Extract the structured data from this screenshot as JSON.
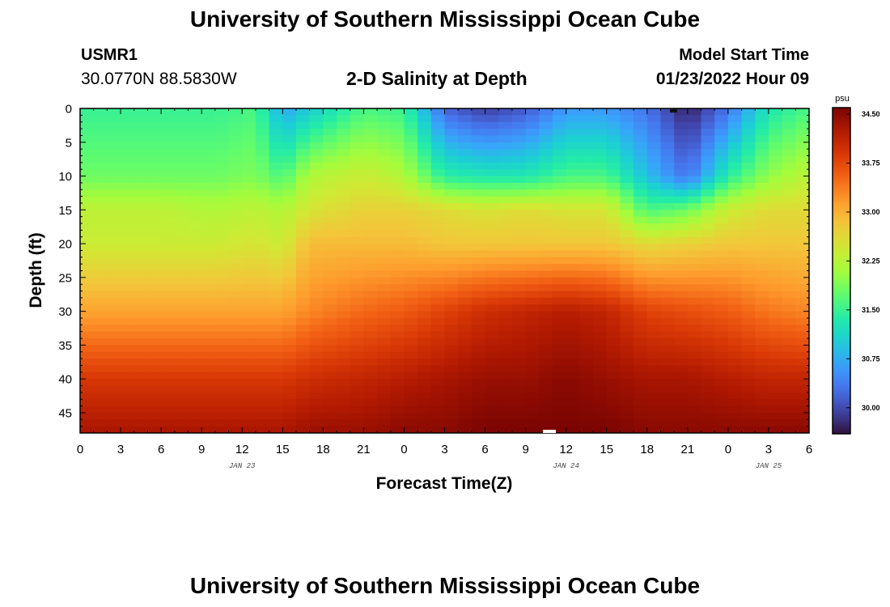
{
  "header": {
    "title": "University of Southern Mississippi Ocean Cube",
    "station": "USMR1",
    "coordinates": "30.0770N  88.5830W",
    "subtitle": "2-D Salinity at Depth",
    "model_start_label": "Model Start Time",
    "model_start_value": "01/23/2022 Hour 09"
  },
  "footer": {
    "title": "University of Southern Mississippi Ocean Cube"
  },
  "colors": {
    "background": "#ffffff",
    "colormap": [
      "#30123b",
      "#4145ab",
      "#4675ed",
      "#39a2fc",
      "#1bcfd4",
      "#24eca6",
      "#61fc6c",
      "#a4fc3b",
      "#d1e834",
      "#f3c63a",
      "#fe9b2d",
      "#f36315",
      "#d93806",
      "#b11901",
      "#7a0403"
    ]
  },
  "chart_data": {
    "type": "heatmap",
    "xlabel": "Forecast Time(Z)",
    "ylabel": "Depth (ft)",
    "x_tick_labels": [
      "0",
      "3",
      "6",
      "9",
      "12",
      "15",
      "18",
      "21",
      "0",
      "3",
      "6",
      "9",
      "12",
      "15",
      "18",
      "21",
      "0",
      "3",
      "6"
    ],
    "x_tick_hours": [
      0,
      3,
      6,
      9,
      12,
      15,
      18,
      21,
      24,
      27,
      30,
      33,
      36,
      39,
      42,
      45,
      48,
      51,
      54
    ],
    "date_labels": [
      {
        "label": "JAN 23",
        "hour": 12
      },
      {
        "label": "JAN 24",
        "hour": 36
      },
      {
        "label": "JAN 25",
        "hour": 51
      }
    ],
    "y_tick_labels": [
      "0",
      "5",
      "10",
      "15",
      "20",
      "25",
      "30",
      "35",
      "40",
      "45"
    ],
    "y_ticks": [
      0,
      5,
      10,
      15,
      20,
      25,
      30,
      35,
      40,
      45
    ],
    "ylim": [
      0,
      48
    ],
    "xlim": [
      0,
      54
    ],
    "y_reversed": true,
    "colorbar": {
      "unit": "psu",
      "labels": [
        "34.50",
        "33.75",
        "33.00",
        "32.25",
        "31.50",
        "30.75",
        "30.00"
      ],
      "ticks": [
        34.5,
        33.75,
        33.0,
        32.25,
        31.5,
        30.75,
        30.0
      ],
      "range": [
        29.6,
        34.6
      ]
    },
    "time_hours": [
      0,
      6,
      10,
      13,
      15,
      17,
      21,
      24,
      27,
      30,
      33,
      36,
      39,
      42,
      45,
      48,
      51,
      54
    ],
    "depth_ft": [
      0,
      10,
      15,
      20,
      30,
      40,
      48
    ],
    "salinity_psu": [
      [
        31.5,
        31.8,
        32.3,
        32.4,
        33.1,
        33.9,
        34.3
      ],
      [
        31.5,
        31.8,
        32.3,
        32.4,
        33.1,
        33.9,
        34.3
      ],
      [
        31.5,
        31.8,
        32.2,
        32.4,
        33.1,
        33.9,
        34.3
      ],
      [
        31.6,
        31.9,
        32.3,
        32.5,
        33.1,
        33.9,
        34.3
      ],
      [
        30.7,
        31.6,
        32.2,
        32.4,
        33.1,
        33.9,
        34.3
      ],
      [
        31.0,
        32.2,
        32.5,
        32.9,
        33.3,
        34.0,
        34.4
      ],
      [
        31.6,
        32.4,
        32.7,
        32.9,
        33.5,
        34.1,
        34.4
      ],
      [
        31.5,
        32.2,
        32.7,
        32.9,
        33.6,
        34.2,
        34.5
      ],
      [
        30.2,
        31.4,
        32.6,
        32.8,
        33.8,
        34.3,
        34.5
      ],
      [
        29.9,
        31.3,
        32.5,
        32.8,
        34.0,
        34.4,
        34.6
      ],
      [
        30.1,
        31.3,
        32.6,
        32.8,
        34.1,
        34.4,
        34.6
      ],
      [
        30.6,
        31.6,
        32.5,
        32.8,
        34.2,
        34.5,
        34.6
      ],
      [
        30.6,
        31.6,
        32.5,
        32.8,
        34.1,
        34.4,
        34.6
      ],
      [
        30.3,
        30.9,
        31.6,
        32.6,
        33.8,
        34.3,
        34.5
      ],
      [
        29.7,
        30.3,
        31.8,
        32.7,
        33.7,
        34.3,
        34.5
      ],
      [
        30.3,
        31.4,
        32.4,
        32.8,
        33.6,
        34.2,
        34.5
      ],
      [
        31.3,
        32.0,
        32.6,
        32.8,
        33.4,
        34.1,
        34.5
      ],
      [
        31.6,
        32.3,
        32.6,
        32.8,
        33.3,
        34.1,
        34.5
      ]
    ]
  }
}
